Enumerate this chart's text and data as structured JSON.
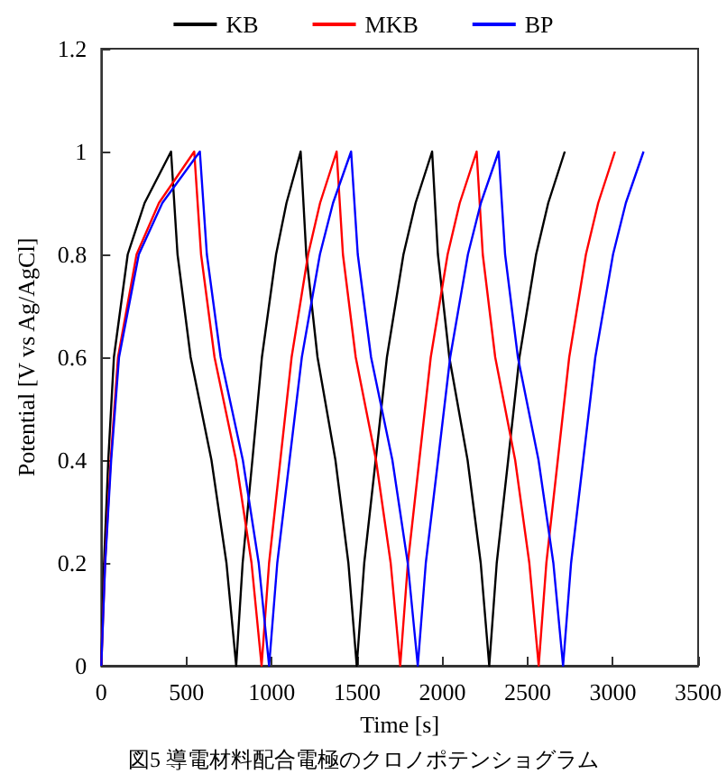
{
  "chart_data": {
    "type": "line",
    "xlabel": "Time [s]",
    "ylabel": "Potential [V vs Ag/AgCl]",
    "annotations": [
      "図5 導電材料配合電極のクロノポテンショグラム"
    ],
    "xlim": [
      0,
      3500
    ],
    "xticks": [
      0,
      500,
      1000,
      1500,
      2000,
      2500,
      3000,
      3500
    ],
    "ylim": [
      0,
      1.2
    ],
    "yticks": [
      0,
      0.2,
      0.4,
      0.6,
      0.8,
      1,
      1.2
    ],
    "grid": false,
    "legend": "top",
    "marker": "none",
    "line_style": "solid",
    "series": [
      {
        "name": "KB",
        "color": "#000000",
        "x": [
          0,
          16,
          41,
          74,
          155,
          254,
          409,
          447,
          524,
          646,
          734,
          791,
          829,
          886,
          942,
          1025,
          1086,
          1169,
          1202,
          1268,
          1373,
          1449,
          1498,
          1542,
          1609,
          1675,
          1772,
          1843,
          1940,
          1974,
          2041,
          2148,
          2225,
          2275,
          2319,
          2386,
          2452,
          2550,
          2621,
          2718
        ],
        "values": [
          0,
          0.2,
          0.4,
          0.6,
          0.8,
          0.9,
          1,
          0.8,
          0.6,
          0.4,
          0.2,
          0,
          0.2,
          0.4,
          0.6,
          0.8,
          0.9,
          1,
          0.8,
          0.6,
          0.4,
          0.2,
          0,
          0.2,
          0.4,
          0.6,
          0.8,
          0.9,
          1,
          0.8,
          0.6,
          0.4,
          0.2,
          0,
          0.2,
          0.4,
          0.6,
          0.8,
          0.9,
          1
        ]
      },
      {
        "name": "MKB",
        "color": "#ff0000",
        "x": [
          0,
          22,
          55,
          98,
          207,
          338,
          545,
          585,
          664,
          790,
          881,
          940,
          984,
          1050,
          1116,
          1213,
          1283,
          1380,
          1417,
          1492,
          1611,
          1697,
          1753,
          1798,
          1865,
          1932,
          2031,
          2102,
          2201,
          2237,
          2310,
          2427,
          2510,
          2565,
          2610,
          2677,
          2744,
          2842,
          2914,
          3012
        ],
        "values": [
          0,
          0.2,
          0.4,
          0.6,
          0.8,
          0.9,
          1,
          0.8,
          0.6,
          0.4,
          0.2,
          0,
          0.2,
          0.4,
          0.6,
          0.8,
          0.9,
          1,
          0.8,
          0.6,
          0.4,
          0.2,
          0,
          0.2,
          0.4,
          0.6,
          0.8,
          0.9,
          1,
          0.8,
          0.6,
          0.4,
          0.2,
          0,
          0.2,
          0.4,
          0.6,
          0.8,
          0.9,
          1
        ]
      },
      {
        "name": "BP",
        "color": "#0000ff",
        "x": [
          0,
          23,
          58,
          104,
          220,
          358,
          578,
          619,
          700,
          830,
          923,
          984,
          1032,
          1104,
          1176,
          1282,
          1359,
          1465,
          1504,
          1582,
          1707,
          1797,
          1856,
          1903,
          1975,
          2046,
          2150,
          2226,
          2330,
          2368,
          2443,
          2564,
          2651,
          2708,
          2755,
          2826,
          2897,
          3001,
          3076,
          3180
        ],
        "values": [
          0,
          0.2,
          0.4,
          0.6,
          0.8,
          0.9,
          1,
          0.8,
          0.6,
          0.4,
          0.2,
          0,
          0.2,
          0.4,
          0.6,
          0.8,
          0.9,
          1,
          0.8,
          0.6,
          0.4,
          0.2,
          0,
          0.2,
          0.4,
          0.6,
          0.8,
          0.9,
          1,
          0.8,
          0.6,
          0.4,
          0.2,
          0,
          0.2,
          0.4,
          0.6,
          0.8,
          0.9,
          1
        ]
      }
    ]
  }
}
